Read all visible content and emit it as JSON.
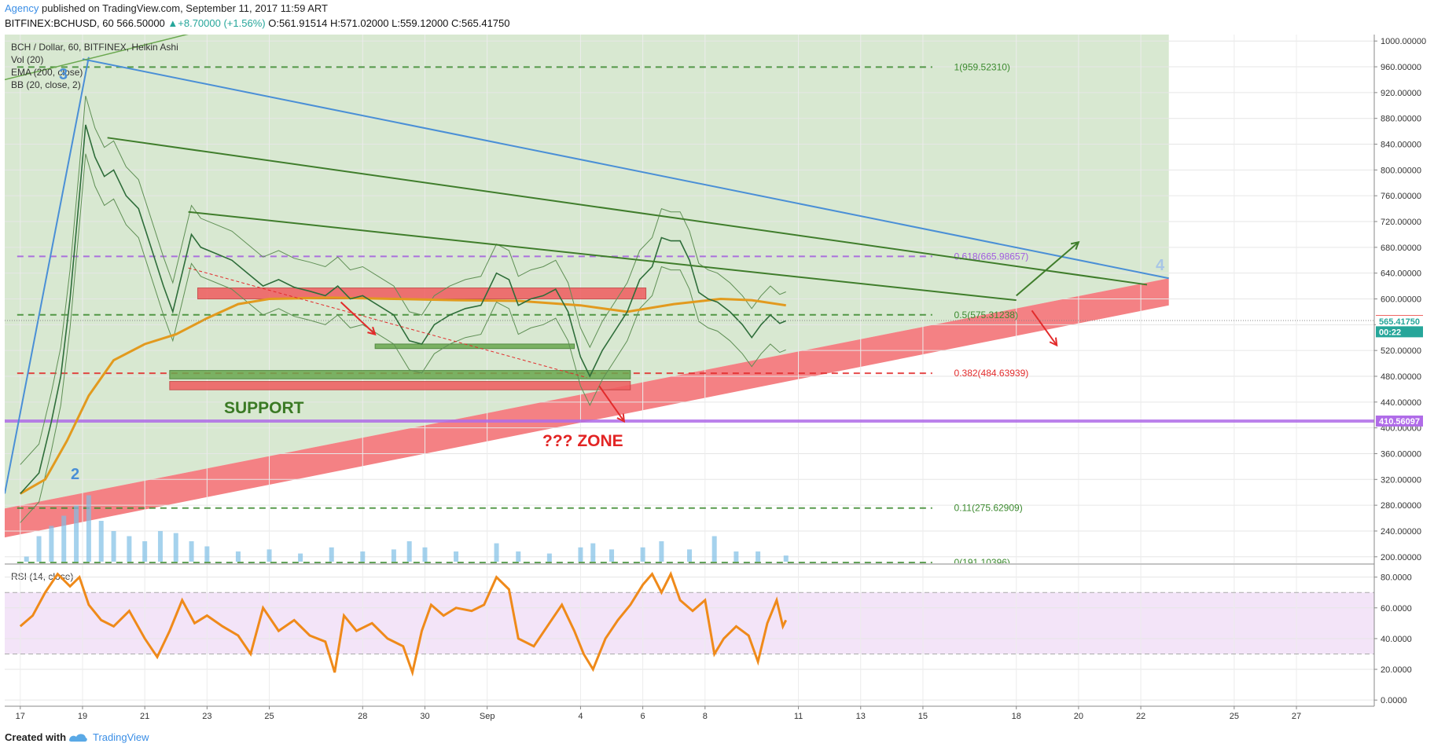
{
  "header": {
    "author": "Agency",
    "published_text": " published on TradingView.com, September 11, 2017 11:59 ART",
    "symbol": "BITFINEX:BCHUSD, 60",
    "last": "566.50000",
    "change": "▲+8.70000 (+1.56%)",
    "open": "O:561.91514",
    "high": "H:571.02000",
    "low": "L:559.12000",
    "close": "C:565.41750"
  },
  "legend": {
    "main": "BCH / Dollar, 60, BITFINEX, Heikin Ashi",
    "vol": "Vol (20)",
    "ema": "EMA (200, close)",
    "bb": "BB (20, close, 2)",
    "rsi": "RSI (14, close)"
  },
  "annotations": {
    "wave3": "3",
    "wave2": "2",
    "wave4": "4",
    "support": "SUPPORT",
    "zone": "??? ZONE"
  },
  "footer": {
    "created": "Created with",
    "brand": "TradingView"
  },
  "colors": {
    "green_zone": "#d6e7cf",
    "red_zone": "#f4676a",
    "ema": "#e29a1e",
    "rsi": "#ef8a1a",
    "rsi_band": "#f3e4f8",
    "blue_line": "#4a8fd6",
    "green_line": "#3f7d2b",
    "purple_line": "#b06ce8",
    "price_up": "#26a69a",
    "price_label": "#ef5350"
  },
  "chart_data": [
    {
      "type": "line",
      "title": "BCH / Dollar, 60, BITFINEX, Heikin Ashi",
      "y_axis": {
        "ticks": [
          "1000.00000",
          "960.00000",
          "920.00000",
          "880.00000",
          "840.00000",
          "800.00000",
          "760.00000",
          "720.00000",
          "680.00000",
          "640.00000",
          "600.00000",
          "560.00000",
          "520.00000",
          "480.00000",
          "440.00000",
          "400.00000",
          "360.00000",
          "320.00000",
          "280.00000",
          "240.00000",
          "200.00000"
        ],
        "range": [
          190,
          1010
        ]
      },
      "x_axis": {
        "ticks": [
          "17",
          "19",
          "21",
          "23",
          "25",
          "28",
          "30",
          "Sep",
          "4",
          "6",
          "8",
          "11",
          "13",
          "15",
          "18",
          "20",
          "22",
          "25",
          "27"
        ]
      },
      "fib_levels": [
        {
          "label": "1(959.52310)",
          "value": 959.5231,
          "color": "green"
        },
        {
          "label": "0.618(665.98657)",
          "value": 665.98657,
          "color": "purple"
        },
        {
          "label": "0.5(575.31238)",
          "value": 575.31238,
          "color": "green"
        },
        {
          "label": "0.382(484.63939)",
          "value": 484.63939,
          "color": "red"
        },
        {
          "label": "0.11(275.62909)",
          "value": 275.62909,
          "color": "green"
        },
        {
          "label": "0(191.10396)",
          "value": 191.10396,
          "color": "green"
        }
      ],
      "horizontal_level": {
        "label": "410.56097",
        "value": 410.56097
      },
      "price_labels": [
        {
          "label": "566.50000",
          "value": 566.5
        },
        {
          "label": "565.41750",
          "value": 565.4175
        },
        {
          "label": "00:22",
          "value": 549
        }
      ],
      "price_series": [
        {
          "t": 17.0,
          "v": 298
        },
        {
          "t": 17.6,
          "v": 330
        },
        {
          "t": 18.0,
          "v": 410
        },
        {
          "t": 18.3,
          "v": 480
        },
        {
          "t": 18.6,
          "v": 600
        },
        {
          "t": 18.9,
          "v": 760
        },
        {
          "t": 19.1,
          "v": 870
        },
        {
          "t": 19.4,
          "v": 820
        },
        {
          "t": 19.7,
          "v": 790
        },
        {
          "t": 20.0,
          "v": 800
        },
        {
          "t": 20.4,
          "v": 760
        },
        {
          "t": 20.8,
          "v": 740
        },
        {
          "t": 21.2,
          "v": 680
        },
        {
          "t": 21.6,
          "v": 620
        },
        {
          "t": 21.9,
          "v": 580
        },
        {
          "t": 22.2,
          "v": 640
        },
        {
          "t": 22.5,
          "v": 700
        },
        {
          "t": 22.8,
          "v": 680
        },
        {
          "t": 23.3,
          "v": 670
        },
        {
          "t": 23.8,
          "v": 660
        },
        {
          "t": 24.3,
          "v": 640
        },
        {
          "t": 24.8,
          "v": 620
        },
        {
          "t": 25.3,
          "v": 630
        },
        {
          "t": 25.8,
          "v": 618
        },
        {
          "t": 26.3,
          "v": 612
        },
        {
          "t": 26.8,
          "v": 605
        },
        {
          "t": 27.2,
          "v": 620
        },
        {
          "t": 27.6,
          "v": 600
        },
        {
          "t": 28.0,
          "v": 605
        },
        {
          "t": 28.5,
          "v": 590
        },
        {
          "t": 29.0,
          "v": 575
        },
        {
          "t": 29.5,
          "v": 535
        },
        {
          "t": 29.9,
          "v": 530
        },
        {
          "t": 30.3,
          "v": 560
        },
        {
          "t": 30.8,
          "v": 575
        },
        {
          "t": 31.3,
          "v": 585
        },
        {
          "t": 31.8,
          "v": 590
        },
        {
          "t": 32.3,
          "v": 640
        },
        {
          "t": 32.7,
          "v": 630
        },
        {
          "t": 33.0,
          "v": 590
        },
        {
          "t": 33.4,
          "v": 600
        },
        {
          "t": 33.8,
          "v": 605
        },
        {
          "t": 34.2,
          "v": 615
        },
        {
          "t": 34.6,
          "v": 580
        },
        {
          "t": 35.0,
          "v": 510
        },
        {
          "t": 35.3,
          "v": 480
        },
        {
          "t": 35.7,
          "v": 520
        },
        {
          "t": 36.1,
          "v": 550
        },
        {
          "t": 36.5,
          "v": 580
        },
        {
          "t": 36.9,
          "v": 630
        },
        {
          "t": 37.3,
          "v": 650
        },
        {
          "t": 37.6,
          "v": 695
        },
        {
          "t": 37.9,
          "v": 690
        },
        {
          "t": 38.2,
          "v": 690
        },
        {
          "t": 38.5,
          "v": 660
        },
        {
          "t": 38.8,
          "v": 610
        },
        {
          "t": 39.1,
          "v": 600
        },
        {
          "t": 39.4,
          "v": 595
        },
        {
          "t": 39.8,
          "v": 580
        },
        {
          "t": 40.2,
          "v": 560
        },
        {
          "t": 40.5,
          "v": 540
        },
        {
          "t": 40.8,
          "v": 560
        },
        {
          "t": 41.1,
          "v": 575
        },
        {
          "t": 41.4,
          "v": 562
        },
        {
          "t": 41.6,
          "v": 566
        }
      ],
      "ema_series": [
        {
          "t": 17.0,
          "v": 298
        },
        {
          "t": 17.8,
          "v": 320
        },
        {
          "t": 18.5,
          "v": 380
        },
        {
          "t": 19.2,
          "v": 450
        },
        {
          "t": 20.0,
          "v": 505
        },
        {
          "t": 21.0,
          "v": 530
        },
        {
          "t": 22.0,
          "v": 545
        },
        {
          "t": 23.0,
          "v": 570
        },
        {
          "t": 24.0,
          "v": 592
        },
        {
          "t": 25.0,
          "v": 600
        },
        {
          "t": 27.0,
          "v": 602
        },
        {
          "t": 29.0,
          "v": 600
        },
        {
          "t": 31.0,
          "v": 598
        },
        {
          "t": 33.0,
          "v": 597
        },
        {
          "t": 35.0,
          "v": 590
        },
        {
          "t": 36.5,
          "v": 580
        },
        {
          "t": 38.0,
          "v": 592
        },
        {
          "t": 39.5,
          "v": 600
        },
        {
          "t": 40.5,
          "v": 598
        },
        {
          "t": 41.6,
          "v": 590
        }
      ],
      "x_map": {
        "17": 17,
        "19": 19,
        "21": 21,
        "23": 23,
        "25": 25,
        "28": 28,
        "30": 30,
        "Sep": 32,
        "4": 35,
        "6": 37,
        "8": 39,
        "11": 42,
        "13": 44,
        "15": 46,
        "18": 49,
        "20": 51,
        "22": 53,
        "25b": 56,
        "27": 58
      }
    },
    {
      "type": "line",
      "title": "RSI (14, close)",
      "y_axis": {
        "ticks": [
          "80.0000",
          "60.0000",
          "40.0000",
          "20.0000",
          "0.0000"
        ],
        "range": [
          -4,
          88
        ]
      },
      "band": [
        30,
        70
      ],
      "series": [
        {
          "t": 17.0,
          "v": 48
        },
        {
          "t": 17.4,
          "v": 55
        },
        {
          "t": 17.8,
          "v": 70
        },
        {
          "t": 18.2,
          "v": 82
        },
        {
          "t": 18.6,
          "v": 74
        },
        {
          "t": 18.9,
          "v": 80
        },
        {
          "t": 19.2,
          "v": 62
        },
        {
          "t": 19.6,
          "v": 52
        },
        {
          "t": 20.0,
          "v": 48
        },
        {
          "t": 20.5,
          "v": 58
        },
        {
          "t": 21.0,
          "v": 40
        },
        {
          "t": 21.4,
          "v": 28
        },
        {
          "t": 21.8,
          "v": 45
        },
        {
          "t": 22.2,
          "v": 65
        },
        {
          "t": 22.6,
          "v": 50
        },
        {
          "t": 23.0,
          "v": 55
        },
        {
          "t": 23.5,
          "v": 48
        },
        {
          "t": 24.0,
          "v": 42
        },
        {
          "t": 24.4,
          "v": 30
        },
        {
          "t": 24.8,
          "v": 60
        },
        {
          "t": 25.3,
          "v": 45
        },
        {
          "t": 25.8,
          "v": 52
        },
        {
          "t": 26.3,
          "v": 42
        },
        {
          "t": 26.8,
          "v": 38
        },
        {
          "t": 27.1,
          "v": 18
        },
        {
          "t": 27.4,
          "v": 55
        },
        {
          "t": 27.8,
          "v": 45
        },
        {
          "t": 28.3,
          "v": 50
        },
        {
          "t": 28.8,
          "v": 40
        },
        {
          "t": 29.3,
          "v": 35
        },
        {
          "t": 29.6,
          "v": 18
        },
        {
          "t": 29.9,
          "v": 45
        },
        {
          "t": 30.2,
          "v": 62
        },
        {
          "t": 30.6,
          "v": 55
        },
        {
          "t": 31.0,
          "v": 60
        },
        {
          "t": 31.5,
          "v": 58
        },
        {
          "t": 31.9,
          "v": 62
        },
        {
          "t": 32.3,
          "v": 80
        },
        {
          "t": 32.7,
          "v": 72
        },
        {
          "t": 33.0,
          "v": 40
        },
        {
          "t": 33.5,
          "v": 35
        },
        {
          "t": 34.0,
          "v": 50
        },
        {
          "t": 34.4,
          "v": 62
        },
        {
          "t": 34.8,
          "v": 45
        },
        {
          "t": 35.1,
          "v": 30
        },
        {
          "t": 35.4,
          "v": 20
        },
        {
          "t": 35.8,
          "v": 40
        },
        {
          "t": 36.2,
          "v": 52
        },
        {
          "t": 36.6,
          "v": 62
        },
        {
          "t": 37.0,
          "v": 75
        },
        {
          "t": 37.3,
          "v": 82
        },
        {
          "t": 37.6,
          "v": 70
        },
        {
          "t": 37.9,
          "v": 82
        },
        {
          "t": 38.2,
          "v": 65
        },
        {
          "t": 38.6,
          "v": 58
        },
        {
          "t": 39.0,
          "v": 65
        },
        {
          "t": 39.3,
          "v": 30
        },
        {
          "t": 39.6,
          "v": 40
        },
        {
          "t": 40.0,
          "v": 48
        },
        {
          "t": 40.4,
          "v": 42
        },
        {
          "t": 40.7,
          "v": 25
        },
        {
          "t": 41.0,
          "v": 50
        },
        {
          "t": 41.3,
          "v": 65
        },
        {
          "t": 41.5,
          "v": 48
        },
        {
          "t": 41.6,
          "v": 52
        }
      ]
    },
    {
      "type": "bar",
      "title": "Vol (20)",
      "series": [
        {
          "t": 17.2,
          "v": 5
        },
        {
          "t": 17.6,
          "v": 25
        },
        {
          "t": 18.0,
          "v": 35
        },
        {
          "t": 18.4,
          "v": 45
        },
        {
          "t": 18.8,
          "v": 55
        },
        {
          "t": 19.2,
          "v": 65
        },
        {
          "t": 19.6,
          "v": 40
        },
        {
          "t": 20.0,
          "v": 30
        },
        {
          "t": 20.5,
          "v": 25
        },
        {
          "t": 21.0,
          "v": 20
        },
        {
          "t": 21.5,
          "v": 30
        },
        {
          "t": 22.0,
          "v": 28
        },
        {
          "t": 22.5,
          "v": 20
        },
        {
          "t": 23.0,
          "v": 15
        },
        {
          "t": 24.0,
          "v": 10
        },
        {
          "t": 25.0,
          "v": 12
        },
        {
          "t": 26.0,
          "v": 8
        },
        {
          "t": 27.0,
          "v": 14
        },
        {
          "t": 28.0,
          "v": 10
        },
        {
          "t": 29.0,
          "v": 12
        },
        {
          "t": 29.5,
          "v": 20
        },
        {
          "t": 30.0,
          "v": 14
        },
        {
          "t": 31.0,
          "v": 10
        },
        {
          "t": 32.3,
          "v": 18
        },
        {
          "t": 33.0,
          "v": 10
        },
        {
          "t": 34.0,
          "v": 8
        },
        {
          "t": 35.0,
          "v": 14
        },
        {
          "t": 35.4,
          "v": 18
        },
        {
          "t": 36.0,
          "v": 12
        },
        {
          "t": 37.0,
          "v": 14
        },
        {
          "t": 37.6,
          "v": 20
        },
        {
          "t": 38.5,
          "v": 12
        },
        {
          "t": 39.3,
          "v": 25
        },
        {
          "t": 40.0,
          "v": 10
        },
        {
          "t": 40.7,
          "v": 10
        },
        {
          "t": 41.6,
          "v": 6
        }
      ]
    }
  ]
}
